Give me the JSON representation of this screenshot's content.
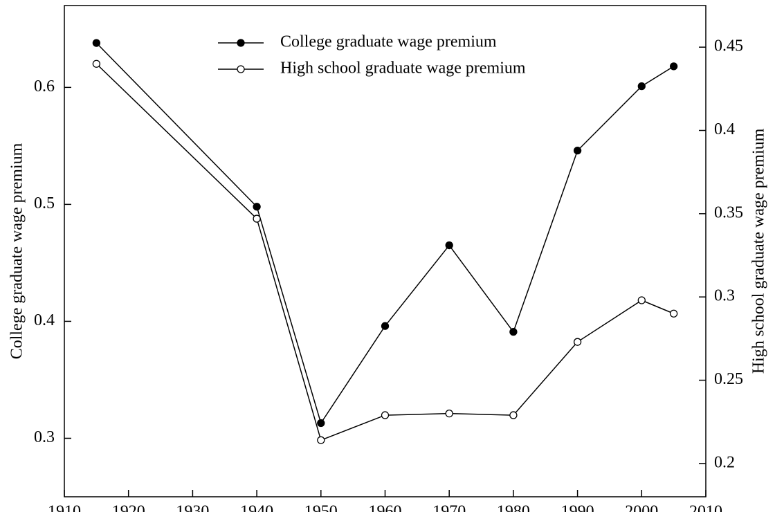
{
  "chart_data": {
    "type": "line",
    "x": [
      1915,
      1940,
      1950,
      1960,
      1970,
      1980,
      1990,
      2000,
      2005
    ],
    "series": [
      {
        "name": "College graduate wage premium",
        "color": "#000000",
        "marker": "filled",
        "values": [
          0.638,
          0.498,
          0.313,
          0.396,
          0.465,
          0.391,
          0.546,
          0.601,
          0.618
        ]
      },
      {
        "name": "High school graduate wage premium",
        "color": "#000000",
        "marker": "open",
        "axis": "y2",
        "values": [
          0.44,
          0.347,
          0.214,
          0.229,
          0.23,
          0.229,
          0.273,
          0.298,
          0.29
        ]
      }
    ],
    "ylabel": "College graduate wage premium",
    "y2label": "High school graduate wage premium",
    "xlim": [
      1910,
      2010
    ],
    "xticks": [
      1910,
      1920,
      1930,
      1940,
      1950,
      1960,
      1970,
      1980,
      1990,
      2000,
      2010
    ],
    "ylim": [
      0.25,
      0.67
    ],
    "yticks": [
      0.3,
      0.4,
      0.5,
      0.6
    ],
    "y2lim": [
      0.18,
      0.475
    ],
    "y2ticks": [
      0.2,
      0.25,
      0.3,
      0.35,
      0.4,
      0.45
    ],
    "legend": "top-center"
  }
}
